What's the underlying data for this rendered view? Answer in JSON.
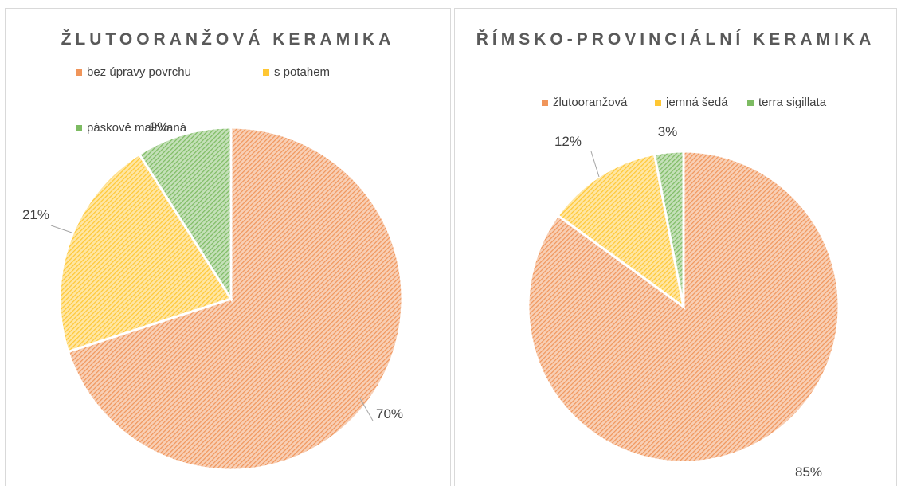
{
  "chart_data": [
    {
      "type": "pie",
      "title": "ŽLUTOORANŽOVÁ KERAMIKA",
      "categories": [
        "bez úpravy povrchu",
        "s potahem",
        "páskově malovaná"
      ],
      "values": [
        70,
        21,
        9
      ],
      "value_labels": [
        "70%",
        "21%",
        "9%"
      ],
      "colors": [
        "#f0955a",
        "#ffc733",
        "#7dbb62"
      ]
    },
    {
      "type": "pie",
      "title": "ŘÍMSKO-PROVINCIÁLNÍ KERAMIKA",
      "categories": [
        "žlutooranžová",
        "jemná šedá",
        "terra sigillata"
      ],
      "values": [
        85,
        12,
        3
      ],
      "value_labels": [
        "85%",
        "12%",
        "3%"
      ],
      "colors": [
        "#f0955a",
        "#ffc733",
        "#7dbb62"
      ]
    }
  ]
}
